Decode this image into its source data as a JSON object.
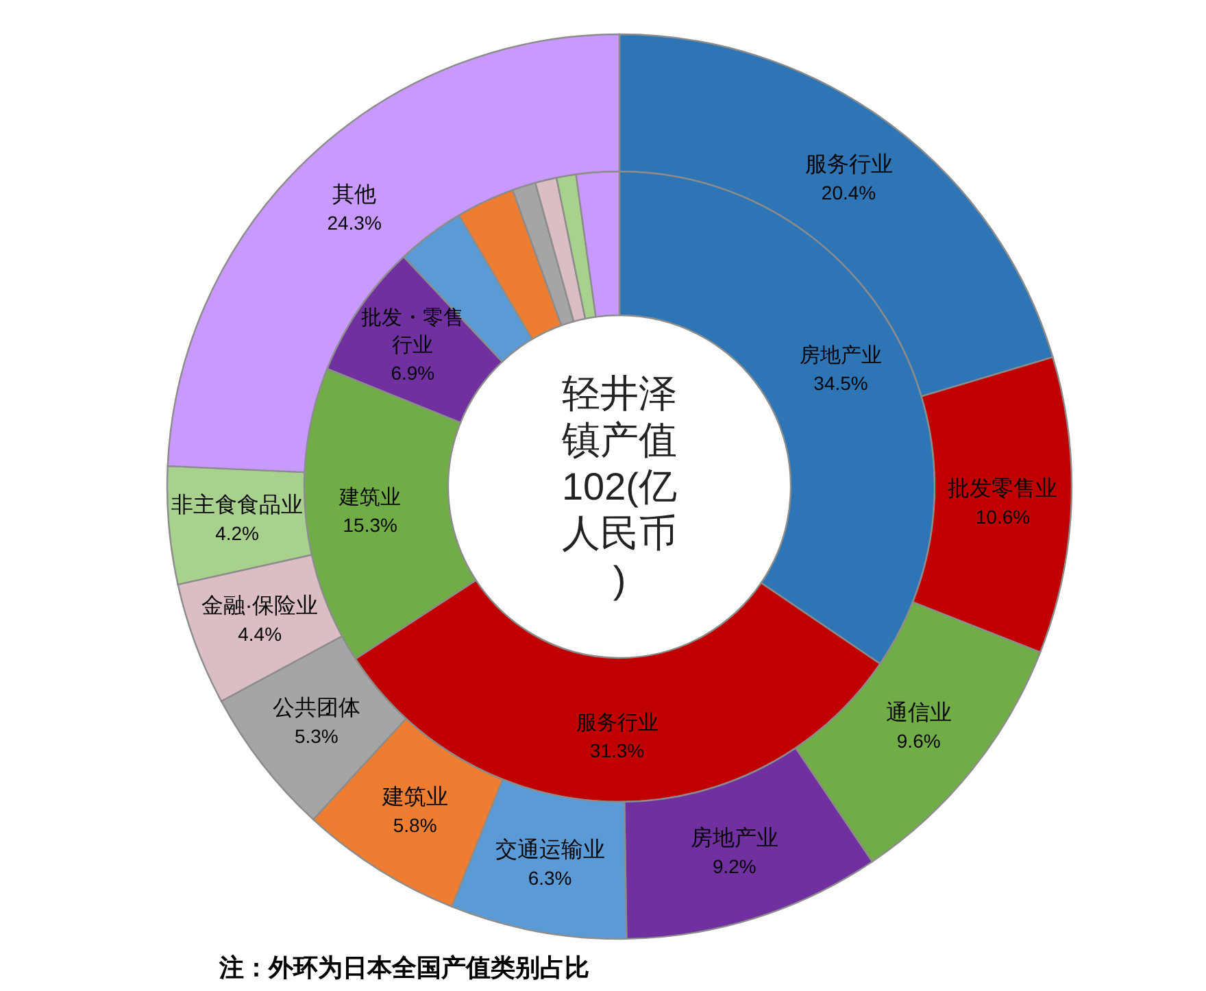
{
  "chart_data": [
    {
      "type": "donut",
      "title": "轻井泽镇产值102(亿人民币)",
      "categories": [
        "房地产业",
        "服务行业",
        "建筑业",
        "批发・零售行业",
        null,
        null,
        null,
        null,
        null,
        null
      ],
      "values": [
        34.5,
        31.3,
        15.3,
        6.9,
        3.5,
        3.0,
        1.2,
        1.1,
        1.0,
        2.2
      ],
      "value_labels": [
        "34.5%",
        "31.3%",
        "15.3%",
        "6.9%",
        null,
        null,
        null,
        null,
        null,
        null
      ],
      "colors": [
        "#2e75b6",
        "#c00000",
        "#70ad47",
        "#7030a0",
        "#5b9bd5",
        "#ed7d31",
        "#a5a5a5",
        "#dbbec4",
        "#a9d18e",
        "#c899ff"
      ]
    },
    {
      "type": "donut",
      "annotations": [
        "注：外环为日本全国产值类别占比"
      ],
      "categories": [
        "服务行业",
        "批发零售业",
        "通信业",
        "房地产业",
        "交通运输业",
        "建筑业",
        "公共团体",
        "金融·保险业",
        "非主食食品业",
        "其他"
      ],
      "values": [
        20.4,
        10.6,
        9.6,
        9.2,
        6.3,
        5.8,
        5.3,
        4.4,
        4.2,
        24.3
      ],
      "value_labels": [
        "20.4%",
        "10.6%",
        "9.6%",
        "9.2%",
        "6.3%",
        "5.8%",
        "5.3%",
        "4.4%",
        "4.2%",
        "24.3%"
      ],
      "colors": [
        "#2e75b6",
        "#c00000",
        "#70ad47",
        "#7030a0",
        "#5b9bd5",
        "#ed7d31",
        "#a5a5a5",
        "#dbbec4",
        "#a9d18e",
        "#c899ff"
      ]
    }
  ]
}
